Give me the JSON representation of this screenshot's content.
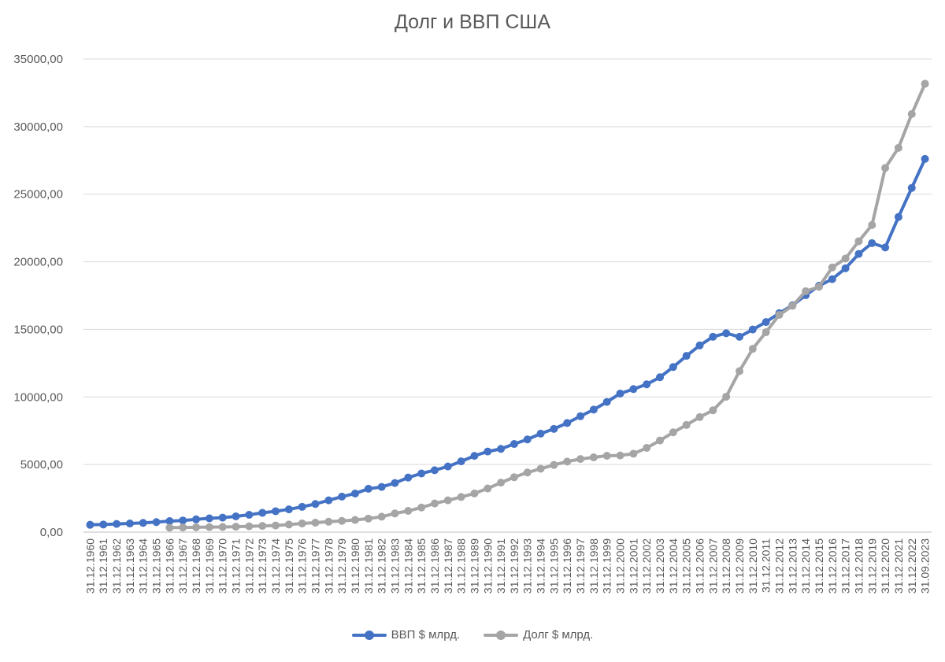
{
  "chart_data": {
    "type": "line",
    "title": "Долг и ВВП США",
    "xlabel": "",
    "ylabel": "",
    "ylim": [
      0,
      35000
    ],
    "yticks": [
      "0,00",
      "5000,00",
      "10000,00",
      "15000,00",
      "20000,00",
      "25000,00",
      "30000,00",
      "35000,00"
    ],
    "ytick_values": [
      0,
      5000,
      10000,
      15000,
      20000,
      25000,
      30000,
      35000
    ],
    "grid": true,
    "legend": "bottom",
    "categories": [
      "31.12.1960",
      "31.12.1961",
      "31.12.1962",
      "31.12.1963",
      "31.12.1964",
      "31.12.1965",
      "31.12.1966",
      "31.12.1967",
      "31.12.1968",
      "31.12.1969",
      "31.12.1970",
      "31.12.1971",
      "31.12.1972",
      "31.12.1973",
      "31.12.1974",
      "31.12.1975",
      "31.12.1976",
      "31.12.1977",
      "31.12.1978",
      "31.12.1979",
      "31.12.1980",
      "31.12.1981",
      "31.12.1982",
      "31.12.1983",
      "31.12.1984",
      "31.12.1985",
      "31.12.1986",
      "31.12.1987",
      "31.12.1988",
      "31.12.1989",
      "31.12.1990",
      "31.12.1991",
      "31.12.1992",
      "31.12.1993",
      "31.12.1994",
      "31.12.1995",
      "31.12.1996",
      "31.12.1997",
      "31.12.1998",
      "31.12.1999",
      "31.12.2000",
      "31.12.2001",
      "31.12.2002",
      "31.12.2003",
      "31.12.2004",
      "31.12.2005",
      "31.12.2006",
      "31.12.2007",
      "31.12.2008",
      "31.12.2009",
      "31.12.2010",
      "31.12.2011",
      "31.12.2012",
      "31.12.2013",
      "31.12.2014",
      "31.12.2015",
      "31.12.2016",
      "31.12.2017",
      "31.12.2018",
      "31.12.2019",
      "31.12.2020",
      "31.12.2021",
      "31.12.2022",
      "31.09.2023"
    ],
    "series": [
      {
        "name": "ВВП $ млрд.",
        "color": "#4472C4",
        "values": [
          543,
          563,
          605,
          638,
          685,
          743,
          815,
          861,
          943,
          1019,
          1073,
          1165,
          1280,
          1425,
          1545,
          1684,
          1873,
          2082,
          2352,
          2627,
          2857,
          3207,
          3343,
          3634,
          4037,
          4339,
          4580,
          4855,
          5236,
          5642,
          5963,
          6158,
          6520,
          6858,
          7287,
          7639,
          8073,
          8577,
          9063,
          9631,
          10252,
          10582,
          10936,
          11458,
          12214,
          13037,
          13815,
          14452,
          14713,
          14449,
          14992,
          15543,
          16197,
          16785,
          17527,
          18225,
          18715,
          19519,
          20580,
          21380,
          21060,
          23315,
          25463,
          27610
        ]
      },
      {
        "name": "Долг $ млрд.",
        "color": "#A5A5A5",
        "values": [
          null,
          null,
          null,
          null,
          null,
          null,
          330,
          345,
          360,
          370,
          380,
          400,
          430,
          460,
          490,
          560,
          640,
          700,
          770,
          830,
          900,
          1000,
          1140,
          1380,
          1570,
          1820,
          2120,
          2350,
          2600,
          2860,
          3230,
          3660,
          4060,
          4410,
          4690,
          4970,
          5220,
          5410,
          5530,
          5650,
          5670,
          5800,
          6230,
          6780,
          7380,
          7930,
          8510,
          9010,
          10020,
          11910,
          13560,
          14790,
          16070,
          16740,
          17820,
          18150,
          19580,
          20240,
          21520,
          22720,
          26940,
          28430,
          30930,
          33170
        ]
      }
    ]
  }
}
